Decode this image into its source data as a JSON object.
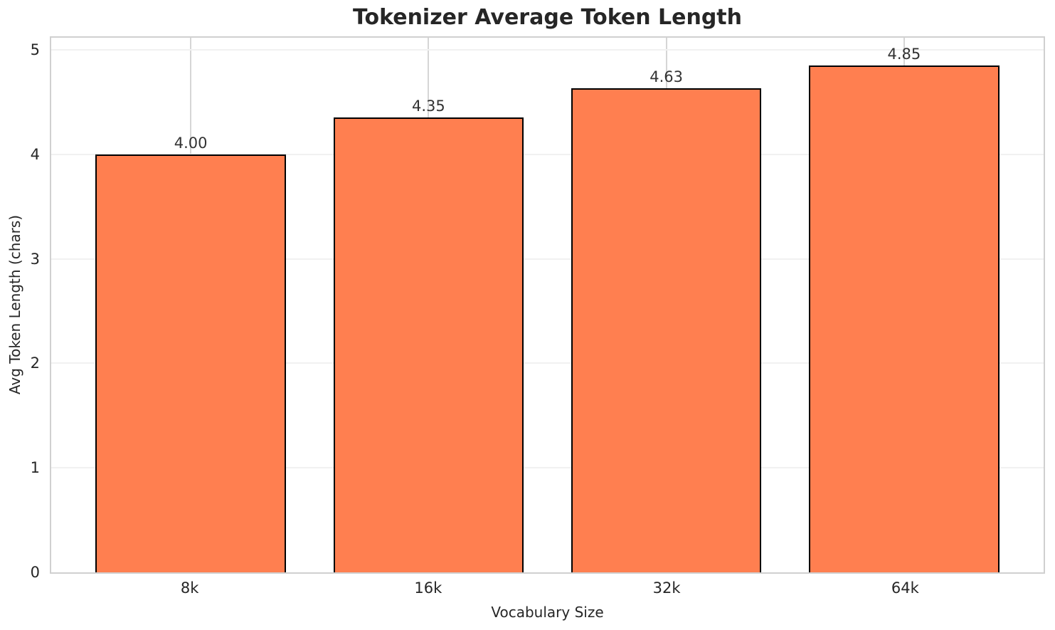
{
  "chart_data": {
    "type": "bar",
    "title": "Tokenizer Average Token Length",
    "xlabel": "Vocabulary Size",
    "ylabel": "Avg Token Length (chars)",
    "categories": [
      "8k",
      "16k",
      "32k",
      "64k"
    ],
    "values": [
      4.0,
      4.35,
      4.63,
      4.85
    ],
    "value_labels": [
      "4.00",
      "4.35",
      "4.63",
      "4.85"
    ],
    "yticks": [
      0,
      1,
      2,
      3,
      4,
      5
    ],
    "ylim": [
      0,
      5.115
    ],
    "grid": true,
    "legend_position": "none",
    "colors": {
      "bar_fill": "#FF7F50",
      "bar_edge": "#000000",
      "spine": "#d0d0d0",
      "grid_x": "#d6d6d6",
      "grid_y": "#f1f1f1",
      "text": "#262626"
    }
  }
}
